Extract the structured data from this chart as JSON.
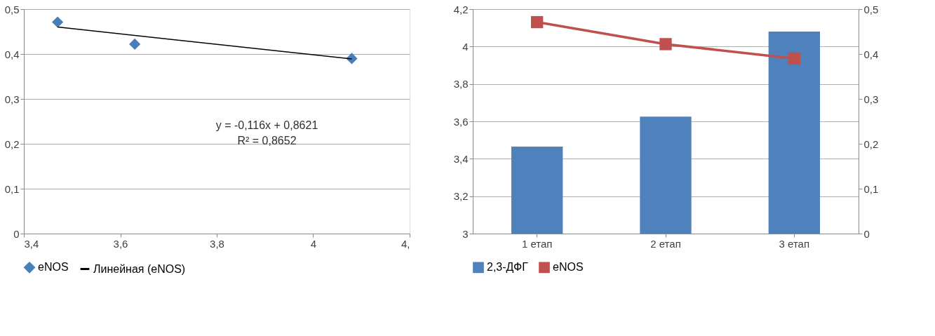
{
  "chart_data": [
    {
      "type": "scatter",
      "x": [
        3.47,
        3.63,
        4.08
      ],
      "series": [
        {
          "name": "eNOS",
          "color": "#4a7ebb",
          "values": [
            0.471,
            0.422,
            0.39
          ],
          "marker": "diamond"
        },
        {
          "name": "Линейная (eNOS)",
          "type": "line",
          "color": "#000000",
          "x": [
            3.47,
            4.08
          ],
          "values": [
            0.46,
            0.389
          ],
          "marker": "none"
        }
      ],
      "xlim": [
        3.4,
        4.2
      ],
      "xticks": [
        {
          "value": 3.4,
          "label": "3,4"
        },
        {
          "value": 3.6,
          "label": "3,6"
        },
        {
          "value": 3.8,
          "label": "3,8"
        },
        {
          "value": 4,
          "label": "4"
        },
        {
          "value": 4.2,
          "label": "4,"
        }
      ],
      "ylim": [
        0,
        0.5
      ],
      "yticks": [
        0,
        {
          "value": 0.1,
          "label": "0,1"
        },
        {
          "value": 0.2,
          "label": "0,2"
        },
        {
          "value": 0.3,
          "label": "0,3"
        },
        {
          "value": 0.4,
          "label": "0,4"
        },
        {
          "value": 0.5,
          "label": "0,5"
        }
      ],
      "grid": "y",
      "legend": "bottom",
      "annotations": [
        "y = -0,116x + 0,8621",
        "R² = 0,8652"
      ]
    },
    {
      "type": "bar",
      "categories": [
        "1 етап",
        "2 етап",
        "3 етап"
      ],
      "series": [
        {
          "name": "2,3-ДФГ",
          "color": "#4f81bd",
          "values": [
            3.465,
            3.625,
            4.08
          ]
        },
        {
          "name": "eNOS",
          "type": "line",
          "axis": "y2",
          "color": "#c0504d",
          "values": [
            0.471,
            0.422,
            0.39
          ],
          "marker": "square"
        }
      ],
      "ylim": [
        3,
        4.2
      ],
      "yticks": [
        3,
        {
          "value": 3.2,
          "label": "3,2"
        },
        {
          "value": 3.4,
          "label": "3,4"
        },
        {
          "value": 3.6,
          "label": "3,6"
        },
        {
          "value": 3.8,
          "label": "3,8"
        },
        4,
        {
          "value": 4.2,
          "label": "4,2"
        }
      ],
      "y2lim": [
        0,
        0.5
      ],
      "y2ticks": [
        0,
        {
          "value": 0.1,
          "label": "0,1"
        },
        {
          "value": 0.2,
          "label": "0,2"
        },
        {
          "value": 0.3,
          "label": "0,3"
        },
        {
          "value": 0.4,
          "label": "0,4"
        },
        {
          "value": 0.5,
          "label": "0,5"
        }
      ],
      "grid": "y",
      "legend": "bottom"
    }
  ]
}
